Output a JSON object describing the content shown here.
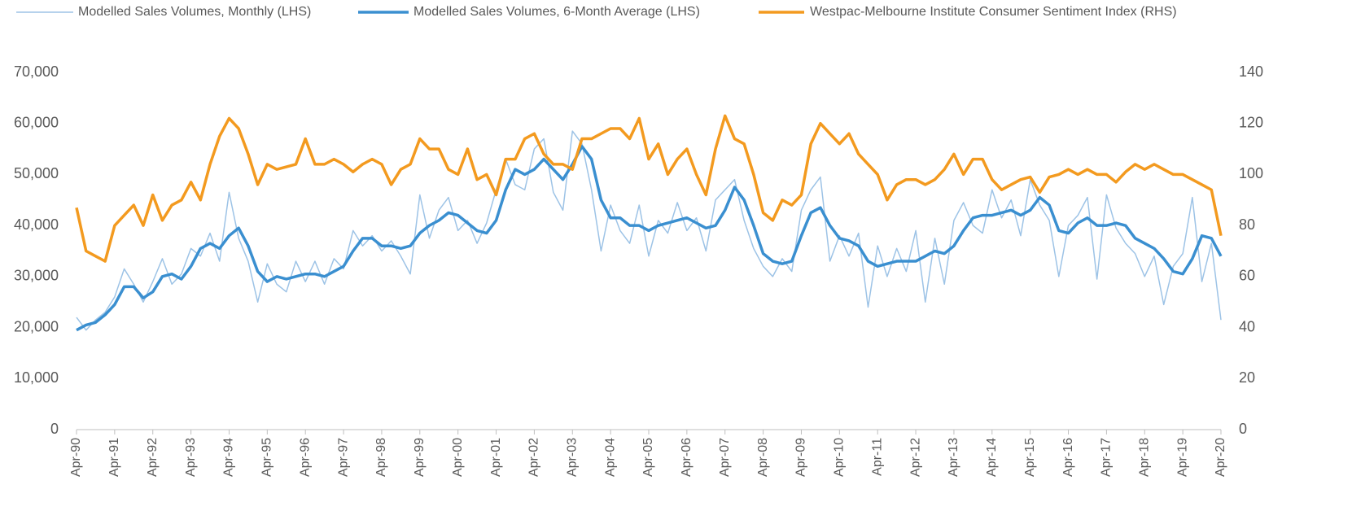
{
  "chart_data": {
    "type": "line",
    "categories": [
      "Apr-90",
      null,
      null,
      null,
      "Apr-91",
      null,
      null,
      null,
      "Apr-92",
      null,
      null,
      null,
      "Apr-93",
      null,
      null,
      null,
      "Apr-94",
      null,
      null,
      null,
      "Apr-95",
      null,
      null,
      null,
      "Apr-96",
      null,
      null,
      null,
      "Apr-97",
      null,
      null,
      null,
      "Apr-98",
      null,
      null,
      null,
      "Apr-99",
      null,
      null,
      null,
      "Apr-00",
      null,
      null,
      null,
      "Apr-01",
      null,
      null,
      null,
      "Apr-02",
      null,
      null,
      null,
      "Apr-03",
      null,
      null,
      null,
      "Apr-04",
      null,
      null,
      null,
      "Apr-05",
      null,
      null,
      null,
      "Apr-06",
      null,
      null,
      null,
      "Apr-07",
      null,
      null,
      null,
      "Apr-08",
      null,
      null,
      null,
      "Apr-09",
      null,
      null,
      null,
      "Apr-10",
      null,
      null,
      null,
      "Apr-11",
      null,
      null,
      null,
      "Apr-12",
      null,
      null,
      null,
      "Apr-13",
      null,
      null,
      null,
      "Apr-14",
      null,
      null,
      null,
      "Apr-15",
      null,
      null,
      null,
      "Apr-16",
      null,
      null,
      null,
      "Apr-17",
      null,
      null,
      null,
      "Apr-18",
      null,
      null,
      null,
      "Apr-19",
      null,
      null,
      null,
      "Apr-20"
    ],
    "series": [
      {
        "name": "Modelled Sales Volumes, Monthly (LHS)",
        "color": "#9dc3e6",
        "axis": "y",
        "values": [
          22000,
          19500,
          21500,
          23000,
          26000,
          31500,
          28500,
          25000,
          29000,
          33500,
          28500,
          30500,
          35500,
          34000,
          38500,
          33000,
          46500,
          37500,
          33000,
          25000,
          32500,
          28500,
          27000,
          33000,
          29000,
          33000,
          28500,
          33500,
          31500,
          39000,
          36000,
          38000,
          35000,
          37000,
          34000,
          30500,
          46000,
          37500,
          43000,
          45500,
          39000,
          41000,
          36500,
          40500,
          47000,
          53000,
          48000,
          47000,
          55000,
          57000,
          46500,
          43000,
          58500,
          56000,
          47000,
          35000,
          44000,
          39000,
          36500,
          44000,
          34000,
          41000,
          38500,
          44500,
          39000,
          41500,
          35000,
          45000,
          47000,
          49000,
          41000,
          35500,
          32000,
          30000,
          33500,
          31000,
          43000,
          47000,
          49500,
          33000,
          38000,
          34000,
          38500,
          24000,
          36000,
          30000,
          35500,
          31000,
          39000,
          25000,
          37500,
          28500,
          41000,
          44500,
          40000,
          38500,
          47000,
          41500,
          45000,
          38000,
          49000,
          44000,
          41000,
          30000,
          40000,
          42000,
          45500,
          29500,
          46000,
          39500,
          36500,
          34500,
          30000,
          34000,
          24500,
          32000,
          34500,
          45500,
          29000,
          36500,
          21500
        ]
      },
      {
        "name": "Modelled Sales Volumes, 6-Month Average (LHS)",
        "color": "#3a8fd0",
        "axis": "y",
        "values": [
          19500,
          20500,
          21000,
          22500,
          24500,
          28000,
          28000,
          25800,
          27000,
          30000,
          30500,
          29500,
          32000,
          35500,
          36500,
          35500,
          38000,
          39500,
          36000,
          31000,
          29000,
          30000,
          29500,
          30000,
          30500,
          30500,
          30000,
          31000,
          32000,
          35000,
          37500,
          37500,
          36000,
          36000,
          35500,
          36000,
          38500,
          40000,
          41000,
          42500,
          42000,
          40500,
          39000,
          38500,
          41000,
          47000,
          51000,
          50000,
          51000,
          53000,
          51000,
          49000,
          52000,
          55500,
          53000,
          45000,
          41500,
          41500,
          40000,
          40000,
          39000,
          40000,
          40500,
          41000,
          41500,
          40500,
          39500,
          40000,
          43000,
          47500,
          45000,
          40000,
          34500,
          33000,
          32500,
          33000,
          38000,
          42500,
          43500,
          40000,
          37500,
          37000,
          36000,
          33000,
          32000,
          32500,
          33000,
          33000,
          33000,
          34000,
          35000,
          34500,
          36000,
          39000,
          41500,
          42000,
          42000,
          42500,
          43000,
          42000,
          43000,
          45500,
          44000,
          39000,
          38500,
          40500,
          41500,
          40000,
          40000,
          40500,
          40000,
          37500,
          36500,
          35500,
          33500,
          31000,
          30500,
          33500,
          38000,
          37500,
          34000
        ]
      },
      {
        "name": "Westpac-Melbourne Institute Consumer Sentiment Index (RHS)",
        "color": "#f39a1f",
        "axis": "y2",
        "values": [
          87,
          70,
          68,
          66,
          80,
          84,
          88,
          80,
          92,
          82,
          88,
          90,
          97,
          90,
          104,
          115,
          122,
          118,
          108,
          96,
          104,
          102,
          103,
          104,
          114,
          104,
          104,
          106,
          104,
          101,
          104,
          106,
          104,
          96,
          102,
          104,
          114,
          110,
          110,
          102,
          100,
          110,
          98,
          100,
          92,
          106,
          106,
          114,
          116,
          108,
          104,
          104,
          102,
          114,
          114,
          116,
          118,
          118,
          114,
          122,
          106,
          112,
          100,
          106,
          110,
          100,
          92,
          110,
          123,
          114,
          112,
          100,
          85,
          82,
          90,
          88,
          92,
          112,
          120,
          116,
          112,
          116,
          108,
          104,
          100,
          90,
          96,
          98,
          98,
          96,
          98,
          102,
          108,
          100,
          106,
          106,
          98,
          94,
          96,
          98,
          99,
          93,
          99,
          100,
          102,
          100,
          102,
          100,
          100,
          97,
          101,
          104,
          102,
          104,
          102,
          100,
          100,
          98,
          96,
          94,
          76
        ]
      }
    ],
    "ylim": [
      0,
      70000
    ],
    "yticks": [
      0,
      {
        "value": 10000,
        "label": "10,000"
      },
      {
        "value": 20000,
        "label": "20,000"
      },
      {
        "value": 30000,
        "label": "30,000"
      },
      {
        "value": 40000,
        "label": "40,000"
      },
      {
        "value": 50000,
        "label": "50,000"
      },
      {
        "value": 60000,
        "label": "60,000"
      },
      {
        "value": 70000,
        "label": "70,000"
      }
    ],
    "y2lim": [
      0,
      140
    ],
    "y2ticks": [
      0,
      20,
      40,
      60,
      80,
      100,
      120,
      140
    ],
    "legend": "top",
    "grid": false
  }
}
